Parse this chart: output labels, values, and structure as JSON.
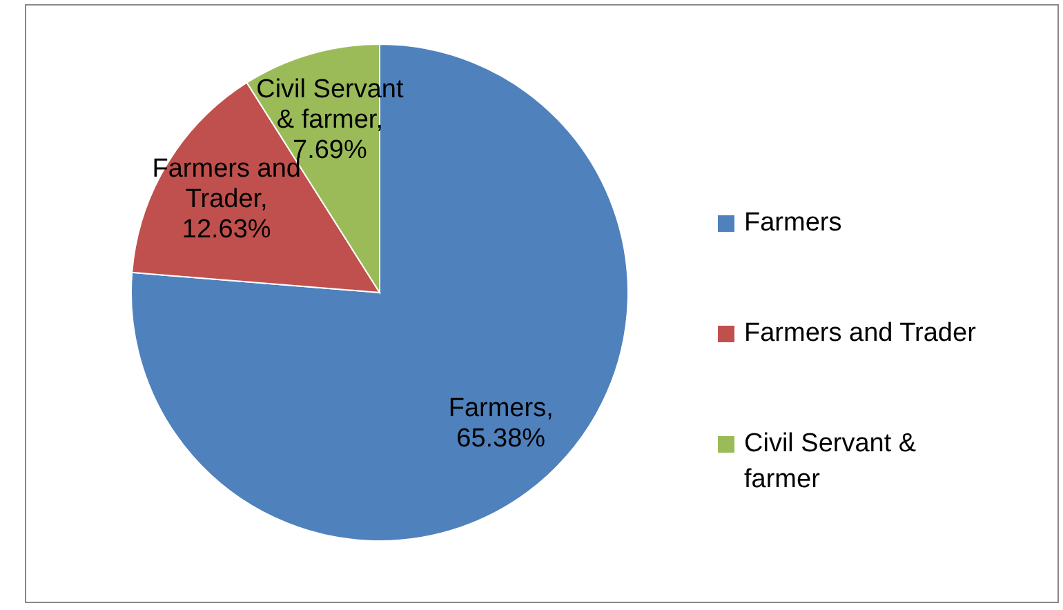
{
  "chart_data": {
    "type": "pie",
    "categories": [
      "Farmers",
      "Farmers and Trader",
      "Civil Servant & farmer"
    ],
    "values": [
      65.38,
      12.63,
      7.69
    ],
    "colors": [
      "#4f81bd",
      "#c0504d",
      "#9bbb59"
    ],
    "value_labels": [
      "Farmers, 65.38%",
      "Farmers and Trader, 12.63%",
      "Civil Servant & farmer, 7.69%"
    ],
    "legend": "right"
  }
}
